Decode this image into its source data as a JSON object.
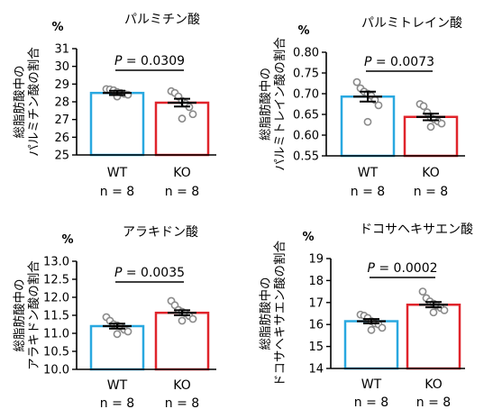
{
  "chart_data": [
    {
      "type": "bar",
      "title": "パルミチン酸",
      "unit": "%",
      "ylabel_lines": [
        "総脂肪酸中の",
        "パルミチン酸の割合"
      ],
      "categories": [
        "WT",
        "KO"
      ],
      "n_labels": [
        "n = 8",
        "n = 8"
      ],
      "ylim": [
        25,
        31
      ],
      "yticks": [
        25,
        26,
        27,
        28,
        29,
        30,
        31
      ],
      "ytick_labels": [
        "25",
        "26",
        "27",
        "28",
        "29",
        "30",
        "31"
      ],
      "means": [
        28.5,
        27.95
      ],
      "errors": [
        0.12,
        0.22
      ],
      "points": [
        [
          28.72,
          28.7,
          28.65,
          28.55,
          28.5,
          28.45,
          28.4,
          28.3
        ],
        [
          28.6,
          28.5,
          28.3,
          28.05,
          27.9,
          27.7,
          27.3,
          27.05
        ]
      ],
      "p_label": "P = 0.0309",
      "colors": [
        "#29a8e0",
        "#e0242b"
      ]
    },
    {
      "type": "bar",
      "title": "パルミトレイン酸",
      "unit": "%",
      "ylabel_lines": [
        "総脂肪酸中の",
        "パルミトレイン酸の割合"
      ],
      "categories": [
        "WT",
        "KO"
      ],
      "n_labels": [
        "n = 8",
        "n = 8"
      ],
      "ylim": [
        0.55,
        0.8
      ],
      "yticks": [
        0.55,
        0.6,
        0.65,
        0.7,
        0.75,
        0.8
      ],
      "ytick_labels": [
        "0.55",
        "0.60",
        "0.65",
        "0.70",
        "0.75",
        "0.80"
      ],
      "means": [
        0.693,
        0.644
      ],
      "errors": [
        0.012,
        0.008
      ],
      "points": [
        [
          0.728,
          0.713,
          0.705,
          0.7,
          0.695,
          0.685,
          0.672,
          0.632
        ],
        [
          0.675,
          0.67,
          0.655,
          0.642,
          0.638,
          0.633,
          0.628,
          0.62
        ]
      ],
      "p_label": "P = 0.0073",
      "colors": [
        "#29a8e0",
        "#e0242b"
      ]
    },
    {
      "type": "bar",
      "title": "アラキドン酸",
      "unit": "%",
      "ylabel_lines": [
        "総脂肪酸中の",
        "アラキドン酸の割合"
      ],
      "categories": [
        "WT",
        "KO"
      ],
      "n_labels": [
        "n = 8",
        "n = 8"
      ],
      "ylim": [
        10.0,
        13.0
      ],
      "yticks": [
        10.0,
        10.5,
        11.0,
        11.5,
        12.0,
        12.5,
        13.0
      ],
      "ytick_labels": [
        "10.0",
        "10.5",
        "11.0",
        "11.5",
        "12.0",
        "12.5",
        "13.0"
      ],
      "means": [
        11.2,
        11.57
      ],
      "errors": [
        0.07,
        0.07
      ],
      "points": [
        [
          11.45,
          11.35,
          11.25,
          11.22,
          11.18,
          11.1,
          11.05,
          10.98
        ],
        [
          11.9,
          11.78,
          11.65,
          11.6,
          11.55,
          11.48,
          11.4,
          11.35
        ]
      ],
      "p_label": "P = 0.0035",
      "colors": [
        "#29a8e0",
        "#e0242b"
      ]
    },
    {
      "type": "bar",
      "title": "ドコサヘキサエン酸",
      "unit": "%",
      "ylabel_lines": [
        "総脂肪酸中の",
        "ドコサヘキサエン酸の割合"
      ],
      "categories": [
        "WT",
        "KO"
      ],
      "n_labels": [
        "n = 8",
        "n = 8"
      ],
      "ylim": [
        14,
        19
      ],
      "yticks": [
        14,
        15,
        16,
        17,
        18,
        19
      ],
      "ytick_labels": [
        "14",
        "15",
        "16",
        "17",
        "18",
        "19"
      ],
      "means": [
        16.15,
        16.9
      ],
      "errors": [
        0.1,
        0.12
      ],
      "points": [
        [
          16.45,
          16.4,
          16.3,
          16.15,
          16.05,
          16.0,
          15.85,
          15.75
        ],
        [
          17.5,
          17.2,
          17.05,
          16.95,
          16.85,
          16.75,
          16.65,
          16.55
        ]
      ],
      "p_label": "P = 0.0002",
      "colors": [
        "#29a8e0",
        "#e0242b"
      ]
    }
  ]
}
